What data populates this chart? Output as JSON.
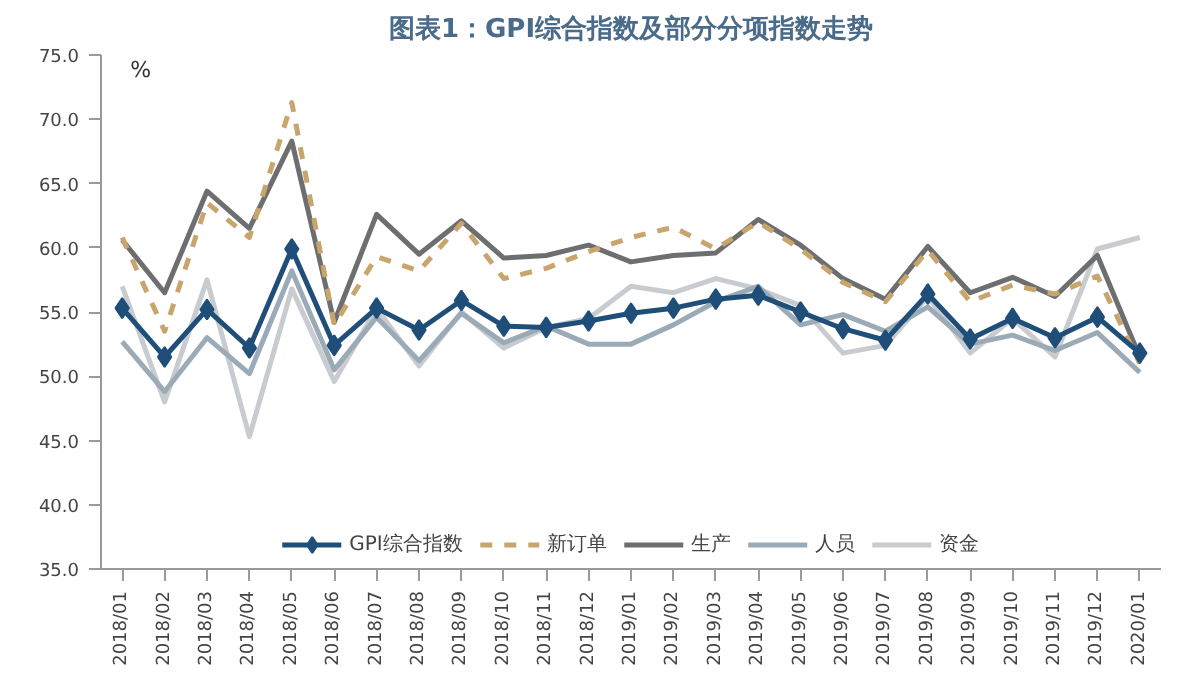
{
  "chart_data": {
    "type": "line",
    "title": "图表1：GPI综合指数及部分分项指数走势",
    "ylabel": "%",
    "categories": [
      "2018/01",
      "2018/02",
      "2018/03",
      "2018/04",
      "2018/05",
      "2018/06",
      "2018/07",
      "2018/08",
      "2018/09",
      "2018/10",
      "2018/11",
      "2018/12",
      "2019/01",
      "2019/02",
      "2019/03",
      "2019/04",
      "2019/05",
      "2019/06",
      "2019/07",
      "2019/08",
      "2019/09",
      "2019/10",
      "2019/11",
      "2019/12",
      "2020/01"
    ],
    "ylim": [
      35,
      75
    ],
    "yticks": [
      {
        "value": 35,
        "label": "35.0"
      },
      {
        "value": 40,
        "label": "40.0"
      },
      {
        "value": 45,
        "label": "45.0"
      },
      {
        "value": 50,
        "label": "50.0"
      },
      {
        "value": 55,
        "label": "55.0"
      },
      {
        "value": 60,
        "label": "60.0"
      },
      {
        "value": 65,
        "label": "65.0"
      },
      {
        "value": 70,
        "label": "70.0"
      },
      {
        "value": 75,
        "label": "75.0"
      }
    ],
    "grid": false,
    "legend": "bottom",
    "series": [
      {
        "name": "资金",
        "color": "#c8ccd0",
        "values": [
          57.0,
          48.0,
          57.5,
          45.3,
          56.8,
          49.6,
          55.3,
          50.8,
          55.0,
          52.2,
          53.8,
          54.5,
          57.0,
          56.5,
          57.6,
          56.8,
          55.5,
          51.8,
          52.4,
          56.2,
          51.8,
          54.5,
          51.5,
          59.9,
          60.8
        ]
      },
      {
        "name": "人员",
        "color": "#9aaab6",
        "values": [
          52.7,
          48.8,
          53.0,
          50.2,
          58.2,
          50.5,
          54.6,
          51.2,
          54.9,
          52.6,
          53.9,
          52.5,
          52.5,
          54.0,
          55.8,
          57.0,
          54.0,
          54.8,
          53.5,
          55.4,
          52.5,
          53.2,
          52.0,
          53.4,
          50.3
        ]
      },
      {
        "name": "生产",
        "color": "#6d6e70",
        "values": [
          60.6,
          56.5,
          64.4,
          61.5,
          68.3,
          54.2,
          62.6,
          59.5,
          62.1,
          59.2,
          59.4,
          60.2,
          58.9,
          59.4,
          59.6,
          62.2,
          60.2,
          57.6,
          56.0,
          60.1,
          56.5,
          57.7,
          56.2,
          59.4,
          51.5
        ]
      },
      {
        "name": "新订单",
        "color": "#c9a56e",
        "line_style": "dashed",
        "values": [
          60.8,
          53.5,
          63.5,
          60.8,
          71.3,
          54.0,
          59.3,
          58.2,
          61.9,
          57.6,
          58.4,
          59.7,
          60.8,
          61.6,
          59.9,
          62.0,
          59.9,
          57.3,
          55.8,
          59.8,
          55.8,
          57.1,
          56.4,
          57.8,
          51.0
        ]
      },
      {
        "name": "GPI综合指数",
        "color": "#1f4e79",
        "marker": "diamond",
        "values": [
          55.3,
          51.5,
          55.2,
          52.2,
          59.9,
          52.4,
          55.3,
          53.6,
          55.9,
          53.9,
          53.8,
          54.3,
          54.9,
          55.3,
          56.0,
          56.3,
          55.0,
          53.7,
          52.8,
          56.4,
          52.9,
          54.5,
          53.0,
          54.6,
          51.8
        ]
      }
    ]
  }
}
